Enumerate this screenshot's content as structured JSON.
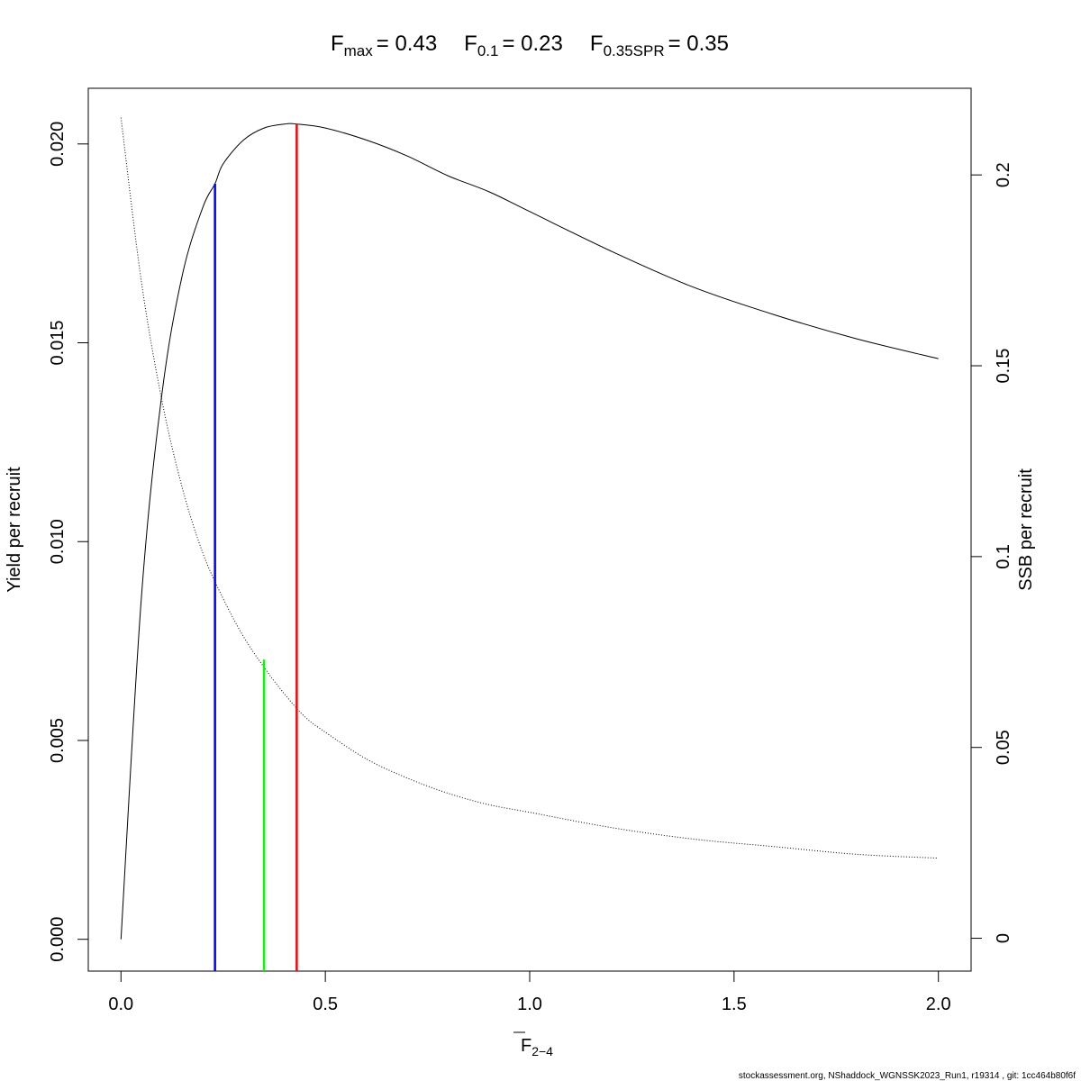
{
  "chart_data": {
    "type": "line",
    "title": {
      "fmax_label": "F",
      "fmax_sub": "max",
      "fmax_value": "= 0.43",
      "f01_label": "F",
      "f01_sub": "0.1",
      "f01_value": "= 0.23",
      "fspr_label": "F",
      "fspr_sub": "0.35SPR",
      "fspr_value": "= 0.35"
    },
    "xlabel": {
      "main": "F",
      "sub": "2−4"
    },
    "ylabel_left": "Yield per recruit",
    "ylabel_right": "SSB per recruit",
    "xlim": [
      -0.08,
      2.08
    ],
    "ylim_left": [
      -0.0008,
      0.0214
    ],
    "ylim_right": [
      -0.0086,
      0.2227
    ],
    "x_ticks": [
      "0.0",
      "0.5",
      "1.0",
      "1.5",
      "2.0"
    ],
    "y_left_ticks": [
      "0.000",
      "0.005",
      "0.010",
      "0.015",
      "0.020"
    ],
    "y_right_ticks": [
      "0",
      "0.05",
      "0.1",
      "0.15",
      "0.2"
    ],
    "series": [
      {
        "name": "Yield per recruit",
        "axis": "left",
        "style": "solid",
        "color": "#000000",
        "x": [
          0,
          0.05,
          0.1,
          0.15,
          0.2,
          0.23,
          0.25,
          0.3,
          0.35,
          0.4,
          0.43,
          0.5,
          0.6,
          0.7,
          0.8,
          0.9,
          1.0,
          1.2,
          1.4,
          1.6,
          1.8,
          2.0
        ],
        "y": [
          0.0,
          0.0086,
          0.0137,
          0.0167,
          0.0184,
          0.019,
          0.0195,
          0.0201,
          0.0204,
          0.0205,
          0.0205,
          0.0204,
          0.0201,
          0.0197,
          0.0192,
          0.0188,
          0.0183,
          0.0173,
          0.0164,
          0.0157,
          0.0151,
          0.0146
        ]
      },
      {
        "name": "SSB per recruit",
        "axis": "right",
        "style": "dotted",
        "color": "#000000",
        "x": [
          0,
          0.05,
          0.1,
          0.15,
          0.2,
          0.25,
          0.3,
          0.35,
          0.4,
          0.45,
          0.5,
          0.6,
          0.7,
          0.8,
          0.9,
          1.0,
          1.2,
          1.4,
          1.6,
          1.8,
          2.0
        ],
        "y": [
          0.215,
          0.172,
          0.141,
          0.118,
          0.101,
          0.089,
          0.079,
          0.071,
          0.064,
          0.058,
          0.054,
          0.047,
          0.042,
          0.038,
          0.035,
          0.033,
          0.029,
          0.026,
          0.024,
          0.022,
          0.021
        ]
      }
    ],
    "reference_lines": [
      {
        "name": "F0.1",
        "x": 0.23,
        "y_top": 0.019,
        "axis": "left",
        "color": "#0000ff"
      },
      {
        "name": "F0.35SPR",
        "x": 0.35,
        "y_top": 0.073,
        "axis": "right",
        "color": "#00ff00"
      },
      {
        "name": "Fmax",
        "x": 0.43,
        "y_top": 0.0205,
        "axis": "left",
        "color": "#ff0000"
      }
    ],
    "grid": false,
    "legend": "none"
  },
  "footer": "stockassessment.org, NShaddock_WGNSSK2023_Run1, r19314 , git: 1cc464b80f6f"
}
